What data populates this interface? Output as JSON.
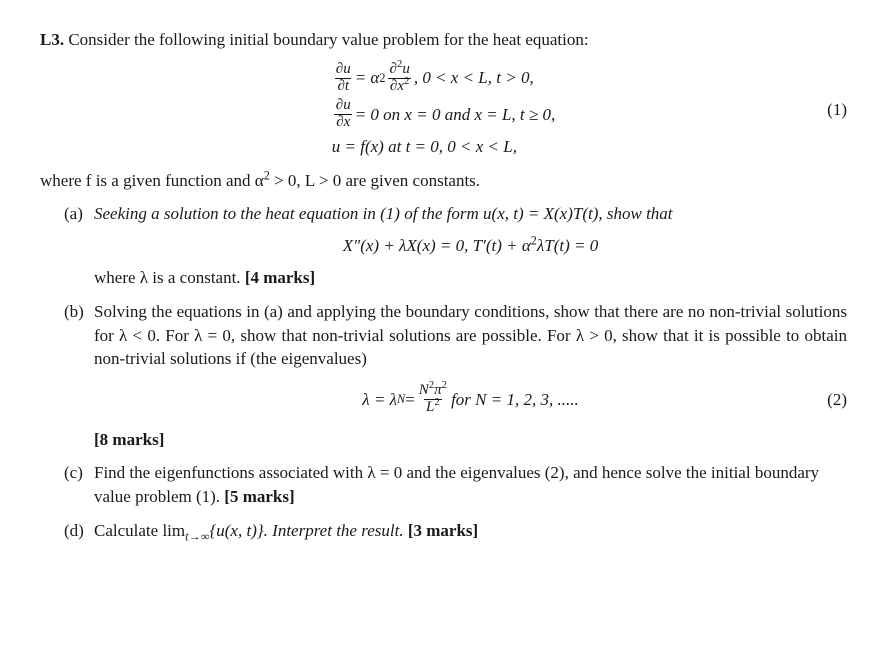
{
  "problem": {
    "label": "L3.",
    "intro": "Consider the following initial boundary value problem for the heat equation:",
    "eq1": {
      "line1_l_num": "∂u",
      "line1_l_den": "∂t",
      "line1_mid": " = α",
      "line1_sq": "2",
      "line1_r_num": "∂",
      "line1_r_num2": "2",
      "line1_r_num3": "u",
      "line1_r_den": "∂x",
      "line1_r_den2": "2",
      "line1_cond": ",   0 < x < L, t > 0,",
      "line2_l_num": "∂u",
      "line2_l_den": "∂x",
      "line2_rest": " = 0 on x = 0  and x = L, t ≥ 0,",
      "line3": "u = f(x) at t = 0, 0 < x < L,",
      "tag": "(1)"
    },
    "where": "where f is a given function and α",
    "where2": " > 0, L > 0 are given constants.",
    "where_sup": "2"
  },
  "parts": {
    "a": {
      "label": "(a)",
      "text1": "Seeking a solution to the heat equation in (1) of the form u(x, t) = X(x)T(t), show that",
      "eq": "X″(x) + λX(x) = 0,   T′(t) + α",
      "eq_sup": "2",
      "eq2": "λT(t) = 0",
      "text2": "where λ is a constant. ",
      "marks": "[4 marks]"
    },
    "b": {
      "label": "(b)",
      "text1": "Solving the equations in (a) and applying the boundary conditions, show that there are no non-trivial solutions for λ < 0.  For λ = 0, show that non-trivial solutions are possible.  For λ > 0, show that it is possible to obtain non-trivial solutions if (the eigenvalues)",
      "eq_lhs": "λ = λ",
      "eq_sub": "N",
      "eq_mid": " = ",
      "eq_num": "N",
      "eq_num_sup": "2",
      "eq_num2": "π",
      "eq_num2_sup": "2",
      "eq_den": "L",
      "eq_den_sup": "2",
      "eq_rhs": "   for N = 1, 2, 3, .....",
      "tag": "(2)",
      "marks": "[8 marks]"
    },
    "c": {
      "label": "(c)",
      "text": "Find the eigenfunctions associated with λ = 0 and the eigenvalues (2), and hence solve the initial boundary value problem (1). ",
      "marks": "[5 marks]"
    },
    "d": {
      "label": "(d)",
      "text1": "Calculate lim",
      "sub": "t→∞",
      "text2": "{u(x, t)}. Interpret the result. ",
      "marks": "[3 marks]"
    }
  }
}
